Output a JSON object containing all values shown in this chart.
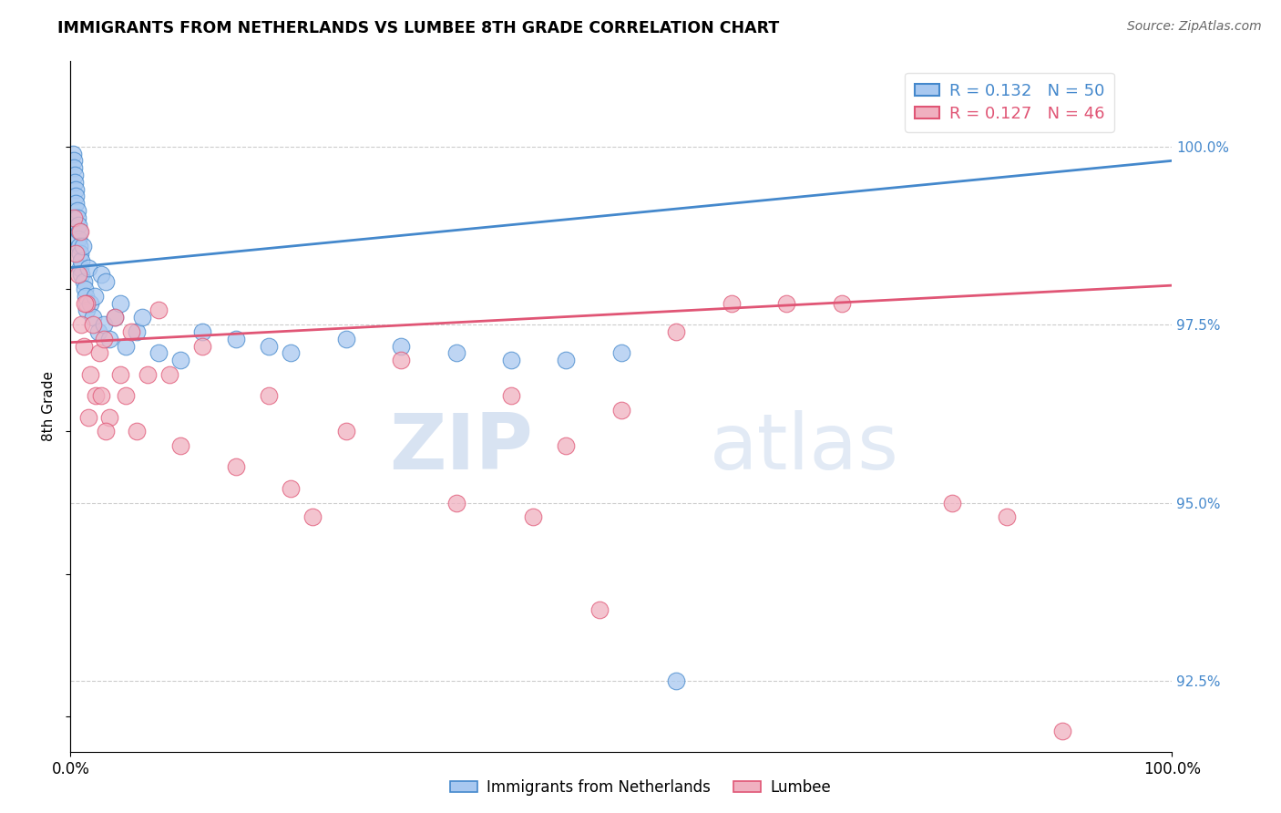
{
  "title": "IMMIGRANTS FROM NETHERLANDS VS LUMBEE 8TH GRADE CORRELATION CHART",
  "source": "Source: ZipAtlas.com",
  "ylabel": "8th Grade",
  "xlim": [
    0,
    100
  ],
  "ylim": [
    91.5,
    101.2
  ],
  "yticks": [
    92.5,
    95.0,
    97.5,
    100.0
  ],
  "yticks_labels": [
    "92.5%",
    "95.0%",
    "97.5%",
    "100.0%"
  ],
  "blue_R": 0.132,
  "blue_N": 50,
  "pink_R": 0.127,
  "pink_N": 46,
  "blue_color": "#a8c8f0",
  "pink_color": "#f0b0c0",
  "blue_line_color": "#4488cc",
  "pink_line_color": "#e05575",
  "legend_label_blue": "Immigrants from Netherlands",
  "legend_label_pink": "Lumbee",
  "watermark_zip": "ZIP",
  "watermark_atlas": "atlas",
  "blue_trend_x0": 0,
  "blue_trend_y0": 98.3,
  "blue_trend_x1": 100,
  "blue_trend_y1": 99.8,
  "pink_trend_x0": 0,
  "pink_trend_y0": 97.25,
  "pink_trend_x1": 100,
  "pink_trend_y1": 98.05,
  "blue_x": [
    0.2,
    0.3,
    0.3,
    0.4,
    0.4,
    0.5,
    0.5,
    0.5,
    0.6,
    0.6,
    0.7,
    0.7,
    0.8,
    0.8,
    0.9,
    0.9,
    1.0,
    1.0,
    1.1,
    1.2,
    1.3,
    1.4,
    1.5,
    1.6,
    1.8,
    2.0,
    2.2,
    2.5,
    2.8,
    3.0,
    3.5,
    4.0,
    5.0,
    6.0,
    8.0,
    10.0,
    15.0,
    20.0,
    30.0,
    40.0,
    50.0,
    55.0,
    3.2,
    4.5,
    6.5,
    12.0,
    18.0,
    25.0,
    35.0,
    45.0
  ],
  "blue_y": [
    99.9,
    99.8,
    99.7,
    99.6,
    99.5,
    99.4,
    99.3,
    99.2,
    99.1,
    99.0,
    98.9,
    98.7,
    98.8,
    98.6,
    98.5,
    98.3,
    98.4,
    98.2,
    98.6,
    98.1,
    98.0,
    97.9,
    97.7,
    98.3,
    97.8,
    97.6,
    97.9,
    97.4,
    98.2,
    97.5,
    97.3,
    97.6,
    97.2,
    97.4,
    97.1,
    97.0,
    97.3,
    97.1,
    97.2,
    97.0,
    97.1,
    92.5,
    98.1,
    97.8,
    97.6,
    97.4,
    97.2,
    97.3,
    97.1,
    97.0
  ],
  "pink_x": [
    0.3,
    0.5,
    0.7,
    0.9,
    1.0,
    1.2,
    1.5,
    1.8,
    2.0,
    2.3,
    2.6,
    3.0,
    3.5,
    4.0,
    4.5,
    5.0,
    6.0,
    7.0,
    8.0,
    10.0,
    12.0,
    15.0,
    18.0,
    20.0,
    25.0,
    30.0,
    35.0,
    40.0,
    45.0,
    50.0,
    3.2,
    2.8,
    1.3,
    1.6,
    5.5,
    9.0,
    55.0,
    60.0,
    70.0,
    80.0,
    85.0,
    48.0,
    22.0,
    42.0,
    65.0,
    90.0
  ],
  "pink_y": [
    99.0,
    98.5,
    98.2,
    98.8,
    97.5,
    97.2,
    97.8,
    96.8,
    97.5,
    96.5,
    97.1,
    97.3,
    96.2,
    97.6,
    96.8,
    96.5,
    96.0,
    96.8,
    97.7,
    95.8,
    97.2,
    95.5,
    96.5,
    95.2,
    96.0,
    97.0,
    95.0,
    96.5,
    95.8,
    96.3,
    96.0,
    96.5,
    97.8,
    96.2,
    97.4,
    96.8,
    97.4,
    97.8,
    97.8,
    95.0,
    94.8,
    93.5,
    94.8,
    94.8,
    97.8,
    91.8
  ],
  "grid_color": "#cccccc",
  "scatter_size": 180
}
